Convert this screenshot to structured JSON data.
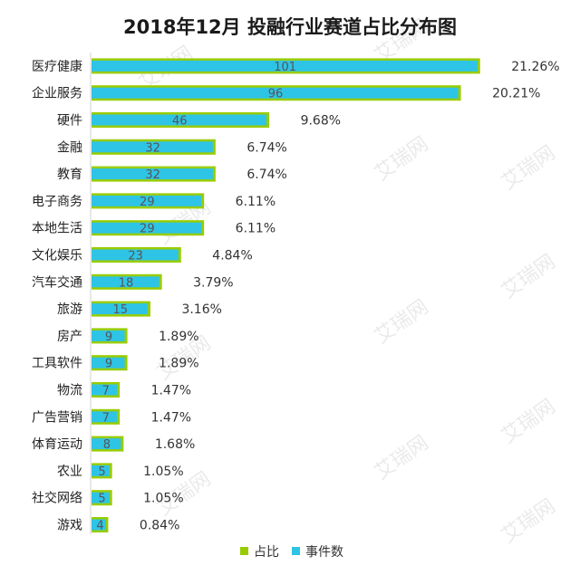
{
  "chart_data": {
    "type": "bar",
    "orientation": "horizontal",
    "title": "2018年12月 投融行业赛道占比分布图",
    "categories": [
      "医疗健康",
      "企业服务",
      "硬件",
      "金融",
      "教育",
      "电子商务",
      "本地生活",
      "文化娱乐",
      "汽车交通",
      "旅游",
      "房产",
      "工具软件",
      "物流",
      "广告营销",
      "体育运动",
      "农业",
      "社交网络",
      "游戏"
    ],
    "series": [
      {
        "name": "占比",
        "color": "#99cc00",
        "values": [
          21.26,
          20.21,
          9.68,
          6.74,
          6.74,
          6.11,
          6.11,
          4.84,
          3.79,
          3.16,
          1.89,
          1.89,
          1.47,
          1.47,
          1.68,
          1.05,
          1.05,
          0.84
        ],
        "labels": [
          "21.26%",
          "20.21%",
          "9.68%",
          "6.74%",
          "6.74%",
          "6.11%",
          "6.11%",
          "4.84%",
          "3.79%",
          "3.16%",
          "1.89%",
          "1.89%",
          "1.47%",
          "1.47%",
          "1.68%",
          "1.05%",
          "1.05%",
          "0.84%"
        ]
      },
      {
        "name": "事件数",
        "color": "#2ec4e6",
        "values": [
          101,
          96,
          46,
          32,
          32,
          29,
          29,
          23,
          18,
          15,
          9,
          9,
          7,
          7,
          8,
          5,
          5,
          4
        ]
      }
    ],
    "legend_position": "bottom",
    "grid": false
  },
  "watermark": "艾瑞网"
}
